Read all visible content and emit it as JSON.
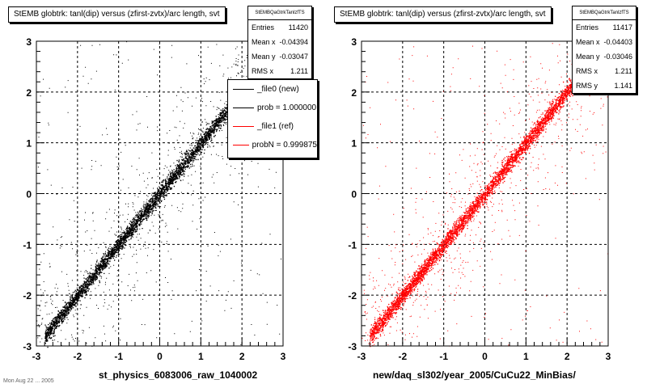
{
  "chart_data": [
    {
      "type": "scatter",
      "title": "StEMB globtrk: tanl(dip) versus (zfirst-zvtx)/arc length, svt",
      "xlabel": "st_physics_6083006_raw_1040002",
      "ylabel": "",
      "xlim": [
        -3,
        3
      ],
      "ylim": [
        -3,
        3
      ],
      "x_ticks": [
        "-3",
        "-2",
        "-1",
        "0",
        "1",
        "2",
        "3"
      ],
      "y_ticks": [
        "-3",
        "-2",
        "-1",
        "0",
        "1",
        "2",
        "3"
      ],
      "grid": true,
      "series": [
        {
          "name": "_file0 (new)",
          "color": "#000000",
          "relation": "y ≈ x",
          "x_range": [
            -2.8,
            2.8
          ]
        }
      ],
      "stats": {
        "name": "StEMBQaGtrkTanlzfTS",
        "rows": [
          {
            "label": "Entries",
            "value": "11420"
          },
          {
            "label": "Mean x",
            "value": "-0.04394"
          },
          {
            "label": "Mean y",
            "value": "-0.03047"
          },
          {
            "label": "RMS x",
            "value": "1.211"
          }
        ]
      },
      "legend": {
        "placement": "top-right",
        "entries": [
          {
            "label": "_file0 (new)",
            "color": "#000000"
          },
          {
            "label": "prob = 1.000000",
            "color": "#000000"
          },
          {
            "label": "_file1 (ref)",
            "color": "#ff0000"
          },
          {
            "label": "probN = 0.999875",
            "color": "#ff0000"
          }
        ]
      }
    },
    {
      "type": "scatter",
      "title": "StEMB globtrk: tanl(dip) versus (zfirst-zvtx)/arc length, svt",
      "xlabel": "new/daq_sl302/year_2005/CuCu22_MinBias/",
      "ylabel": "",
      "xlim": [
        -3,
        3
      ],
      "ylim": [
        -3,
        3
      ],
      "x_ticks": [
        "-3",
        "-2",
        "-1",
        "0",
        "1",
        "2",
        "3"
      ],
      "y_ticks": [
        "-3",
        "-2",
        "-1",
        "0",
        "1",
        "2",
        "3"
      ],
      "grid": true,
      "series": [
        {
          "name": "_file1 (ref)",
          "color": "#ff0000",
          "relation": "y ≈ x",
          "x_range": [
            -2.8,
            2.8
          ]
        }
      ],
      "stats": {
        "name": "StEMBQaGtrkTanlzfTS",
        "rows": [
          {
            "label": "Entries",
            "value": "11417"
          },
          {
            "label": "Mean x",
            "value": "-0.04403"
          },
          {
            "label": "Mean y",
            "value": "-0.03046"
          },
          {
            "label": "RMS x",
            "value": "1.211"
          },
          {
            "label": "RMS y",
            "value": "1.141"
          }
        ]
      }
    }
  ],
  "footer": "Mon Aug 22 ... 2005"
}
